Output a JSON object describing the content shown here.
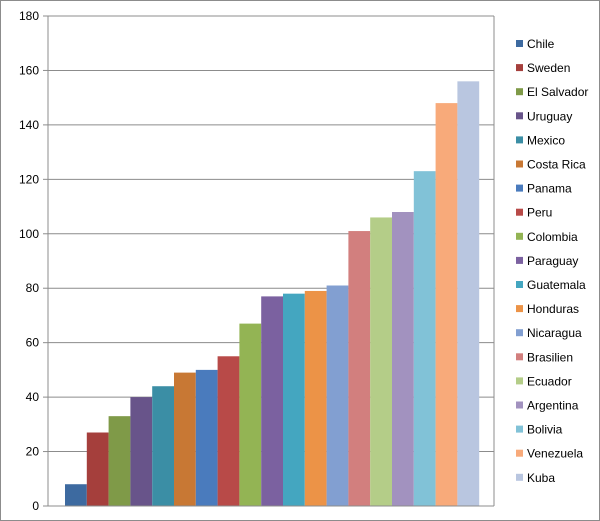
{
  "chart_data": {
    "type": "bar",
    "title": "",
    "xlabel": "",
    "ylabel": "",
    "ylim": [
      0,
      180
    ],
    "yticks": [
      0,
      20,
      40,
      60,
      80,
      100,
      120,
      140,
      160,
      180
    ],
    "grid": true,
    "legend_position": "right",
    "series": [
      {
        "name": "Chile",
        "value": 8,
        "color": "#3d6aa0"
      },
      {
        "name": "Sweden",
        "value": 27,
        "color": "#a53f3c"
      },
      {
        "name": "El Salvador",
        "value": 33,
        "color": "#7f9a48"
      },
      {
        "name": "Uruguay",
        "value": 40,
        "color": "#68548a"
      },
      {
        "name": "Mexico",
        "value": 44,
        "color": "#3b8ea5"
      },
      {
        "name": "Costa Rica",
        "value": 49,
        "color": "#c87834"
      },
      {
        "name": "Panama",
        "value": 50,
        "color": "#4a7bbd"
      },
      {
        "name": "Peru",
        "value": 55,
        "color": "#b84a48"
      },
      {
        "name": "Colombia",
        "value": 67,
        "color": "#93b454"
      },
      {
        "name": "Paraguay",
        "value": 77,
        "color": "#7b61a0"
      },
      {
        "name": "Guatemala",
        "value": 78,
        "color": "#44a6c0"
      },
      {
        "name": "Honduras",
        "value": 79,
        "color": "#ec9347"
      },
      {
        "name": "Nicaragua",
        "value": 81,
        "color": "#829fd1"
      },
      {
        "name": "Brasilien",
        "value": 101,
        "color": "#d27f7e"
      },
      {
        "name": "Ecuador",
        "value": 106,
        "color": "#b4cd88"
      },
      {
        "name": "Argentina",
        "value": 108,
        "color": "#a292bf"
      },
      {
        "name": "Bolivia",
        "value": 123,
        "color": "#81c2d7"
      },
      {
        "name": "Venezuela",
        "value": 148,
        "color": "#f8aa7a"
      },
      {
        "name": "Kuba",
        "value": 156,
        "color": "#b9c6e0"
      }
    ]
  }
}
